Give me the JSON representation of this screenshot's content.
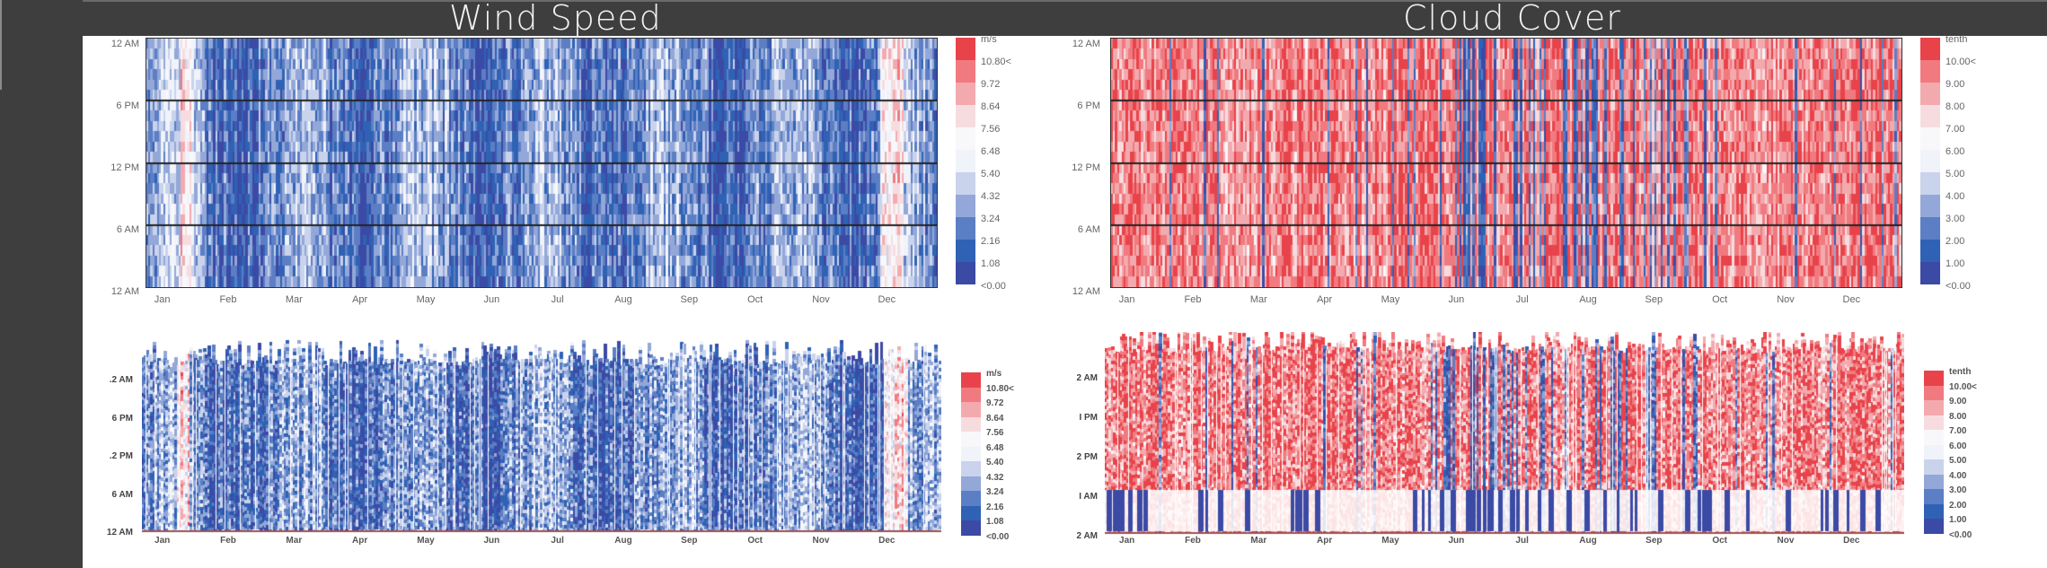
{
  "titles": {
    "wind": "Wind Speed",
    "cloud": "Cloud Cover"
  },
  "colors": {
    "background": "#3e3e3e",
    "panel": "#ffffff",
    "scale": [
      "#3b4aa5",
      "#2f62b4",
      "#5b7ec4",
      "#93a8d8",
      "#c9d3ec",
      "#f1f3fa",
      "#f8f8fb",
      "#f7dcdf",
      "#f3aaae",
      "#f07a7f",
      "#e8434a"
    ]
  },
  "chart_data": [
    {
      "type": "heatmap",
      "title": "Wind Speed",
      "variant": "hourly heatmap (day x hour)",
      "xlabel": "",
      "ylabel": "",
      "x_ticks": [
        "Jan",
        "Feb",
        "Mar",
        "Apr",
        "May",
        "Jun",
        "Jul",
        "Aug",
        "Sep",
        "Oct",
        "Nov",
        "Dec"
      ],
      "y_ticks": [
        "12 AM",
        "6 PM",
        "12 PM",
        "6 AM",
        "12 AM"
      ],
      "legend_unit": "m/s",
      "legend_labels": [
        "10.80<",
        "9.72",
        "8.64",
        "7.56",
        "6.48",
        "5.40",
        "4.32",
        "3.24",
        "2.16",
        "1.08",
        "<0.00"
      ],
      "dominant_range": "mostly 1.08–5.40 m/s (blue), occasional >8.64 in Jan and Dec",
      "grid": true
    },
    {
      "type": "area",
      "title": "Wind Speed",
      "variant": "3D-perspective stacked hourly heatmap",
      "x_ticks": [
        "Jan",
        "Feb",
        "Mar",
        "Apr",
        "May",
        "Jun",
        "Jul",
        "Aug",
        "Sep",
        "Oct",
        "Nov",
        "Dec"
      ],
      "y_ticks": [
        ".2 AM",
        "6 PM",
        ".2 PM",
        "6 AM",
        "12 AM"
      ],
      "legend_unit": "m/s",
      "legend_labels": [
        "10.80<",
        "9.72",
        "8.64",
        "7.56",
        "6.48",
        "5.40",
        "4.32",
        "3.24",
        "2.16",
        "1.08",
        "<0.00"
      ],
      "grid": false
    },
    {
      "type": "heatmap",
      "title": "Cloud Cover",
      "variant": "hourly heatmap (day x hour)",
      "x_ticks": [
        "Jan",
        "Feb",
        "Mar",
        "Apr",
        "May",
        "Jun",
        "Jul",
        "Aug",
        "Sep",
        "Oct",
        "Nov",
        "Dec"
      ],
      "y_ticks": [
        "12 AM",
        "6 PM",
        "12 PM",
        "6 AM",
        "12 AM"
      ],
      "legend_unit": "tenth",
      "legend_labels": [
        "10.00<",
        "9.00",
        "8.00",
        "7.00",
        "6.00",
        "5.00",
        "4.00",
        "3.00",
        "2.00",
        "1.00",
        "<0.00"
      ],
      "dominant_range": "mostly 8–10 tenths (red); clearer (blue) periods Jun–Sep",
      "grid": true
    },
    {
      "type": "area",
      "title": "Cloud Cover",
      "variant": "3D-perspective stacked hourly heatmap",
      "x_ticks": [
        "Jan",
        "Feb",
        "Mar",
        "Apr",
        "May",
        "Jun",
        "Jul",
        "Aug",
        "Sep",
        "Oct",
        "Nov",
        "Dec"
      ],
      "y_ticks": [
        "2 AM",
        "I PM",
        "2 PM",
        "I AM",
        "2 AM"
      ],
      "legend_unit": "tenth",
      "legend_labels": [
        "10.00<",
        "9.00",
        "8.00",
        "7.00",
        "6.00",
        "5.00",
        "4.00",
        "3.00",
        "2.00",
        "1.00",
        "<0.00"
      ],
      "grid": false
    }
  ],
  "wind": {
    "top": {
      "y_ticks": [
        "12 AM",
        "6 PM",
        "12 PM",
        "6 AM",
        "12 AM"
      ],
      "x_ticks": [
        "Jan",
        "Feb",
        "Mar",
        "Apr",
        "May",
        "Jun",
        "Jul",
        "Aug",
        "Sep",
        "Oct",
        "Nov",
        "Dec"
      ]
    },
    "bottom": {
      "y_ticks": [
        ".2 AM",
        "6 PM",
        ".2 PM",
        "6 AM",
        "12 AM"
      ],
      "x_ticks": [
        "Jan",
        "Feb",
        "Mar",
        "Apr",
        "May",
        "Jun",
        "Jul",
        "Aug",
        "Sep",
        "Oct",
        "Nov",
        "Dec"
      ]
    },
    "legend": {
      "unit": "m/s",
      "labels": [
        "10.80<",
        "9.72",
        "8.64",
        "7.56",
        "6.48",
        "5.40",
        "4.32",
        "3.24",
        "2.16",
        "1.08",
        "<0.00"
      ]
    }
  },
  "cloud": {
    "top": {
      "y_ticks": [
        "12 AM",
        "6 PM",
        "12 PM",
        "6 AM",
        "12 AM"
      ],
      "x_ticks": [
        "Jan",
        "Feb",
        "Mar",
        "Apr",
        "May",
        "Jun",
        "Jul",
        "Aug",
        "Sep",
        "Oct",
        "Nov",
        "Dec"
      ]
    },
    "bottom": {
      "y_ticks": [
        "2 AM",
        "I PM",
        "2 PM",
        "I AM",
        "2 AM"
      ],
      "x_ticks": [
        "Jan",
        "Feb",
        "Mar",
        "Apr",
        "May",
        "Jun",
        "Jul",
        "Aug",
        "Sep",
        "Oct",
        "Nov",
        "Dec"
      ]
    },
    "legend": {
      "unit": "tenth",
      "labels": [
        "10.00<",
        "9.00",
        "8.00",
        "7.00",
        "6.00",
        "5.00",
        "4.00",
        "3.00",
        "2.00",
        "1.00",
        "<0.00"
      ]
    }
  }
}
